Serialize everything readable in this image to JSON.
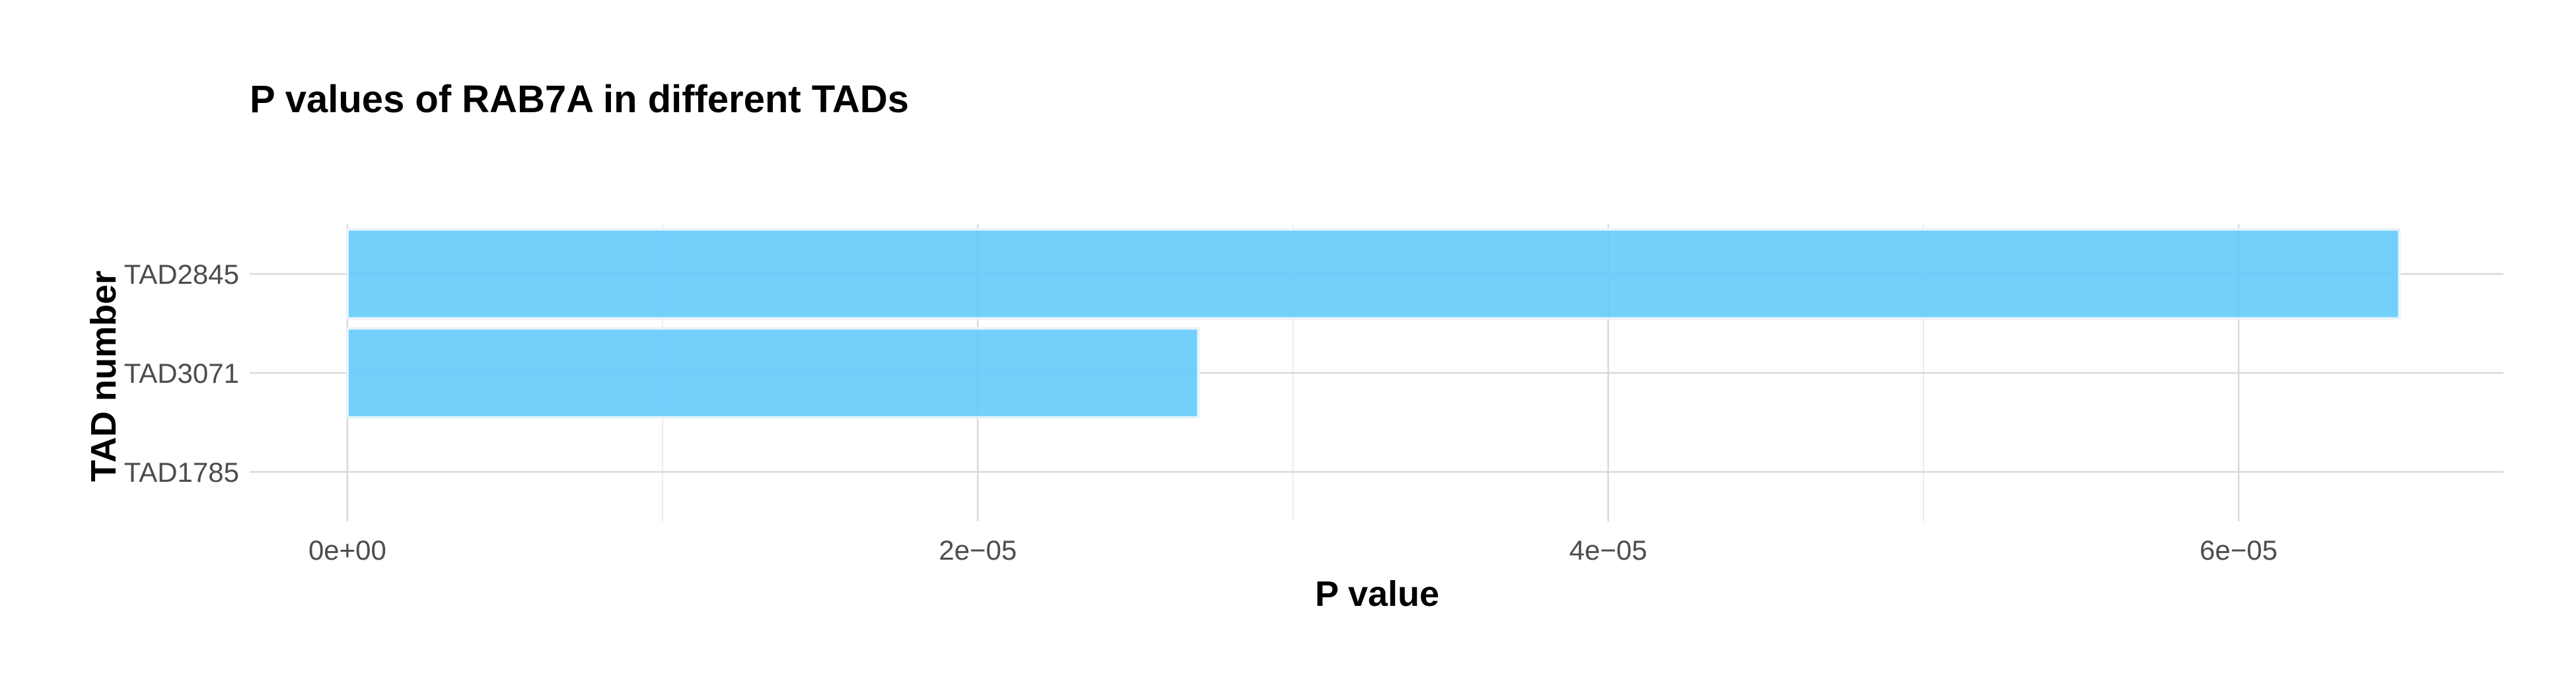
{
  "chart_data": {
    "type": "bar",
    "orientation": "horizontal",
    "title": "P values of RAB7A in different TADs",
    "xlabel": "P value",
    "ylabel": "TAD number",
    "categories": [
      "TAD2845",
      "TAD3071",
      "TAD1785"
    ],
    "values": [
      6.51e-05,
      2.7e-05,
      0
    ],
    "xlim": [
      -3.1e-06,
      6.84e-05
    ],
    "xticks": [
      0,
      2e-05,
      4e-05,
      6e-05
    ],
    "xtick_labels": [
      "0e+00",
      "2e−05",
      "4e−05",
      "6e−05"
    ],
    "x_minor_ticks": [
      1e-05,
      3e-05,
      5e-05
    ],
    "grid": true,
    "bar_color": "#5BC8FA",
    "bar_edge_color": "#E8F4FB",
    "grid_major_color": "#D9D9D9",
    "grid_minor_color": "#ECECEC"
  }
}
